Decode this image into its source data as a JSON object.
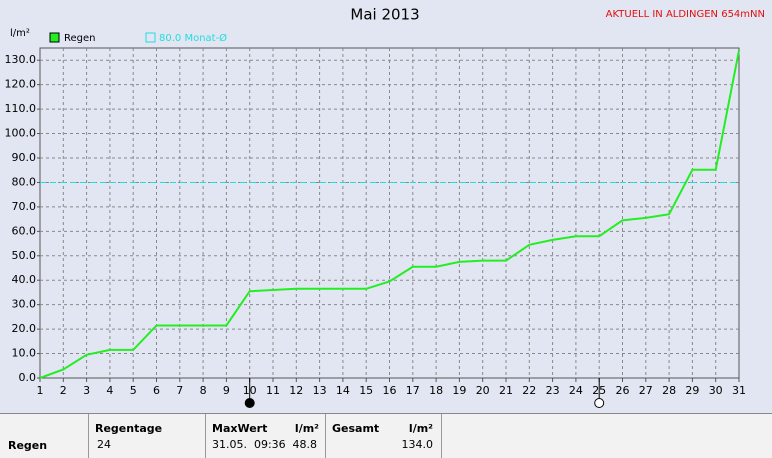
{
  "chart_data": {
    "type": "line",
    "title": "Mai 2013",
    "station": "AKTUELL IN ALDINGEN 654mNN",
    "y_unit": "l/m²",
    "x": [
      1,
      2,
      3,
      4,
      5,
      6,
      7,
      8,
      9,
      10,
      11,
      12,
      13,
      14,
      15,
      16,
      17,
      18,
      19,
      20,
      21,
      22,
      23,
      24,
      25,
      26,
      27,
      28,
      29,
      30,
      31
    ],
    "series": [
      {
        "name": "Regen",
        "color": "#22ee22",
        "values": [
          0,
          3.5,
          9.5,
          11.5,
          11.5,
          21.5,
          21.5,
          21.5,
          21.5,
          35.5,
          36,
          36.5,
          36.5,
          36.5,
          36.5,
          39.5,
          45.5,
          45.5,
          47.5,
          48,
          48,
          54.5,
          56.5,
          58,
          58,
          64.5,
          65.5,
          67,
          85.2,
          85.2,
          134
        ]
      }
    ],
    "reference": {
      "name": "80.0 Monat-Ø",
      "value": 80,
      "color": "#22dddd"
    },
    "xlim": [
      1,
      31
    ],
    "xticks": [
      1,
      2,
      3,
      4,
      5,
      6,
      7,
      8,
      9,
      10,
      11,
      12,
      13,
      14,
      15,
      16,
      17,
      18,
      19,
      20,
      21,
      22,
      23,
      24,
      25,
      26,
      27,
      28,
      29,
      30,
      31
    ],
    "ylim": [
      0,
      135
    ],
    "yticks": [
      {
        "value": 0,
        "label": "0.0"
      },
      {
        "value": 10,
        "label": "10.0"
      },
      {
        "value": 20,
        "label": "20.0"
      },
      {
        "value": 30,
        "label": "30.0"
      },
      {
        "value": 40,
        "label": "40.0"
      },
      {
        "value": 50,
        "label": "50.0"
      },
      {
        "value": 60,
        "label": "60.0"
      },
      {
        "value": 70,
        "label": "70.0"
      },
      {
        "value": 80,
        "label": "80.0"
      },
      {
        "value": 90,
        "label": "90.0"
      },
      {
        "value": 100,
        "label": "100.0"
      },
      {
        "value": 110,
        "label": "110.0"
      },
      {
        "value": 120,
        "label": "120.0"
      },
      {
        "value": 130,
        "label": "130.0"
      }
    ],
    "grid": true,
    "moon": [
      {
        "x": 10,
        "phase": "new"
      },
      {
        "x": 25,
        "phase": "full"
      }
    ]
  },
  "table": {
    "row_label": "Regen",
    "regentage": {
      "header": "Regentage",
      "value": "24"
    },
    "maxwert": {
      "header": "MaxWert",
      "unit": "l/m²",
      "time": "31.05.  09:36",
      "value": "48.8"
    },
    "gesamt": {
      "header": "Gesamt",
      "unit": "l/m²",
      "value": "134.0"
    }
  }
}
